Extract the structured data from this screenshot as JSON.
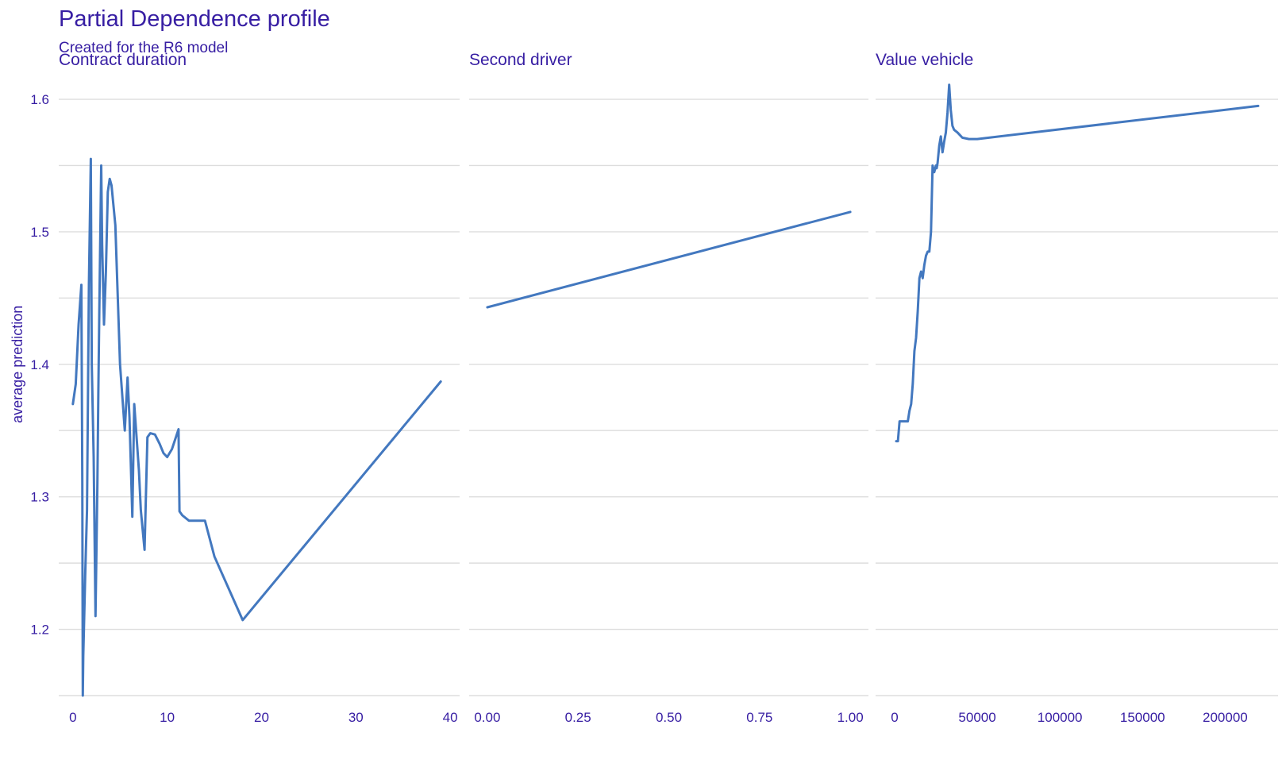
{
  "title": "Partial Dependence profile",
  "subtitle": "Created for the R6 model",
  "chart_data": {
    "type": "line",
    "ylabel": "average prediction",
    "ylim": [
      1.15,
      1.615
    ],
    "yticks": [
      "1.2",
      "1.3",
      "1.4",
      "1.5",
      "1.6"
    ],
    "grid": true,
    "line_color": "#4378bf",
    "text_color": "#371ea3",
    "panels": [
      {
        "title": "Contract  duration",
        "xlim": [
          -1.5,
          41
        ],
        "xticks": [
          "0",
          "10",
          "20",
          "30",
          "40"
        ],
        "x": [
          0,
          0.3,
          0.6,
          0.9,
          1.0,
          1.05,
          1.1,
          1.3,
          1.5,
          1.7,
          1.9,
          2.0,
          2.2,
          2.4,
          2.6,
          2.7,
          2.8,
          3.0,
          3.1,
          3.3,
          3.5,
          3.7,
          3.9,
          4.1,
          4.3,
          4.5,
          5.0,
          5.5,
          5.8,
          6.0,
          6.3,
          6.5,
          7.0,
          7.2,
          7.6,
          7.9,
          8.2,
          8.7,
          9.2,
          9.6,
          10.0,
          10.5,
          11.2,
          11.3,
          11.6,
          12.3,
          14.0,
          15.0,
          18.0,
          39.0
        ],
        "y": [
          1.37,
          1.385,
          1.43,
          1.46,
          1.31,
          1.15,
          1.18,
          1.24,
          1.29,
          1.46,
          1.555,
          1.4,
          1.33,
          1.21,
          1.31,
          1.38,
          1.44,
          1.55,
          1.49,
          1.43,
          1.47,
          1.53,
          1.54,
          1.535,
          1.52,
          1.505,
          1.4,
          1.35,
          1.39,
          1.36,
          1.285,
          1.37,
          1.32,
          1.29,
          1.26,
          1.345,
          1.348,
          1.347,
          1.34,
          1.333,
          1.33,
          1.336,
          1.351,
          1.289,
          1.286,
          1.282,
          1.282,
          1.255,
          1.207,
          1.387
        ]
      },
      {
        "title": "Second  driver",
        "xlim": [
          -0.05,
          1.05
        ],
        "xticks": [
          "0.00",
          "0.25",
          "0.50",
          "0.75",
          "1.00"
        ],
        "x": [
          0,
          1
        ],
        "y": [
          1.443,
          1.515
        ]
      },
      {
        "title": "Value  vehicle",
        "xlim": [
          -11500,
          232000
        ],
        "xticks": [
          "0",
          "50000",
          "100000",
          "150000",
          "200000"
        ],
        "x": [
          1000,
          2000,
          3000,
          4000,
          6000,
          8000,
          9000,
          10000,
          11000,
          12000,
          13000,
          14000,
          15000,
          16000,
          17000,
          18000,
          19000,
          20000,
          21000,
          22000,
          23000,
          24000,
          25000,
          25500,
          26000,
          27000,
          28000,
          29000,
          30000,
          31000,
          32000,
          33000,
          34000,
          35000,
          36000,
          38000,
          41000,
          45000,
          50000,
          220000
        ],
        "y": [
          1.342,
          1.342,
          1.357,
          1.357,
          1.357,
          1.357,
          1.365,
          1.37,
          1.385,
          1.41,
          1.42,
          1.44,
          1.465,
          1.47,
          1.465,
          1.475,
          1.482,
          1.485,
          1.485,
          1.5,
          1.55,
          1.545,
          1.55,
          1.548,
          1.552,
          1.565,
          1.572,
          1.56,
          1.568,
          1.575,
          1.59,
          1.611,
          1.592,
          1.58,
          1.577,
          1.575,
          1.571,
          1.57,
          1.57,
          1.595
        ]
      }
    ]
  }
}
